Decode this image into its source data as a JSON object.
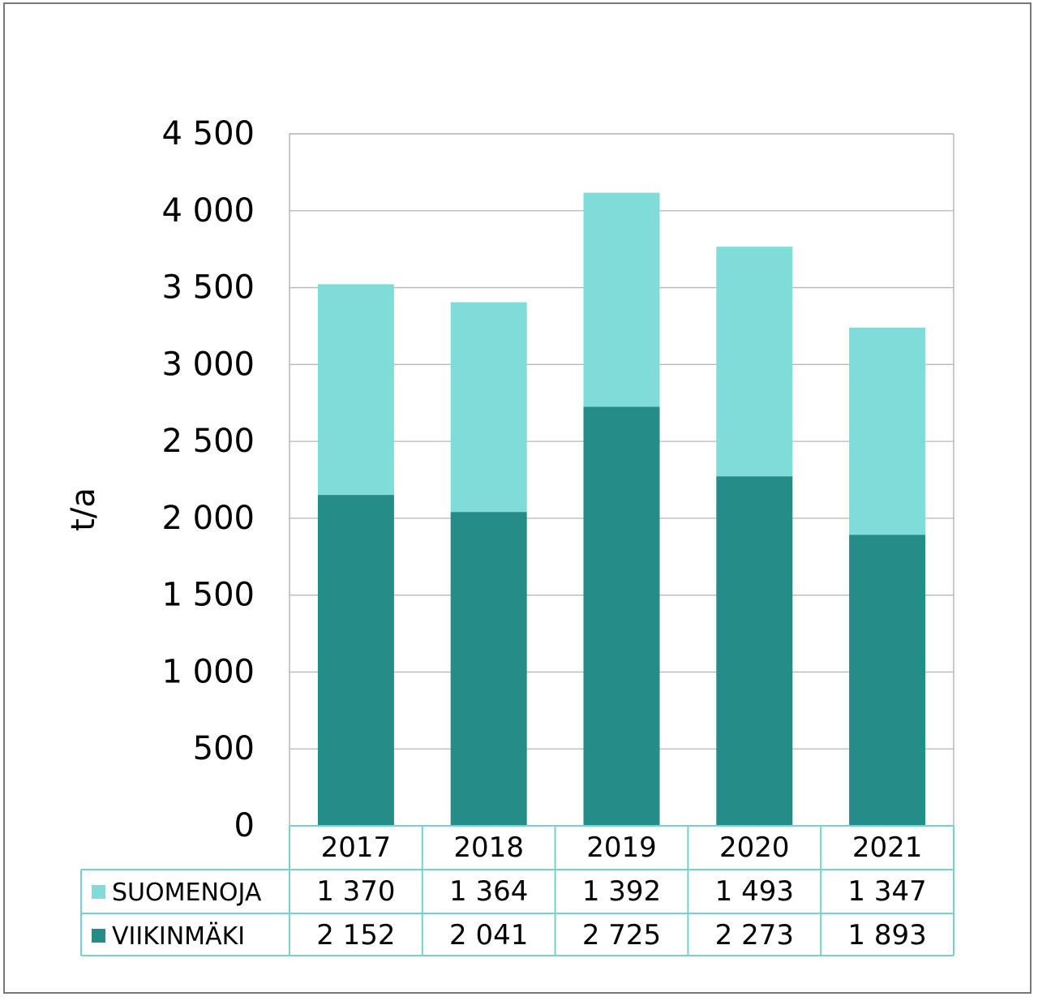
{
  "chart_data": {
    "type": "bar",
    "stacked": true,
    "title": "",
    "xlabel": "",
    "ylabel": "t/a",
    "ylim": [
      0,
      4500
    ],
    "yticks": [
      0,
      500,
      1000,
      1500,
      2000,
      2500,
      3000,
      3500,
      4000,
      4500
    ],
    "ytick_labels": [
      "0",
      "500",
      "1 000",
      "1 500",
      "2 000",
      "2 500",
      "3 000",
      "3 500",
      "4 000",
      "4 500"
    ],
    "grid": true,
    "legend_position": "data table below",
    "categories": [
      "2017",
      "2018",
      "2019",
      "2020",
      "2021"
    ],
    "series": [
      {
        "name": "VIIKINMÄKI",
        "color": "#258c88",
        "values": [
          2152,
          2041,
          2725,
          2273,
          1893
        ],
        "labels": [
          "2 152",
          "2 041",
          "2 725",
          "2 273",
          "1 893"
        ]
      },
      {
        "name": "SUOMENOJA",
        "color": "#80dcd8",
        "values": [
          1370,
          1364,
          1392,
          1493,
          1347
        ],
        "labels": [
          "1 370",
          "1 364",
          "1 392",
          "1 493",
          "1 347"
        ]
      }
    ],
    "table_rows_order": [
      "SUOMENOJA",
      "VIIKINMÄKI"
    ]
  }
}
